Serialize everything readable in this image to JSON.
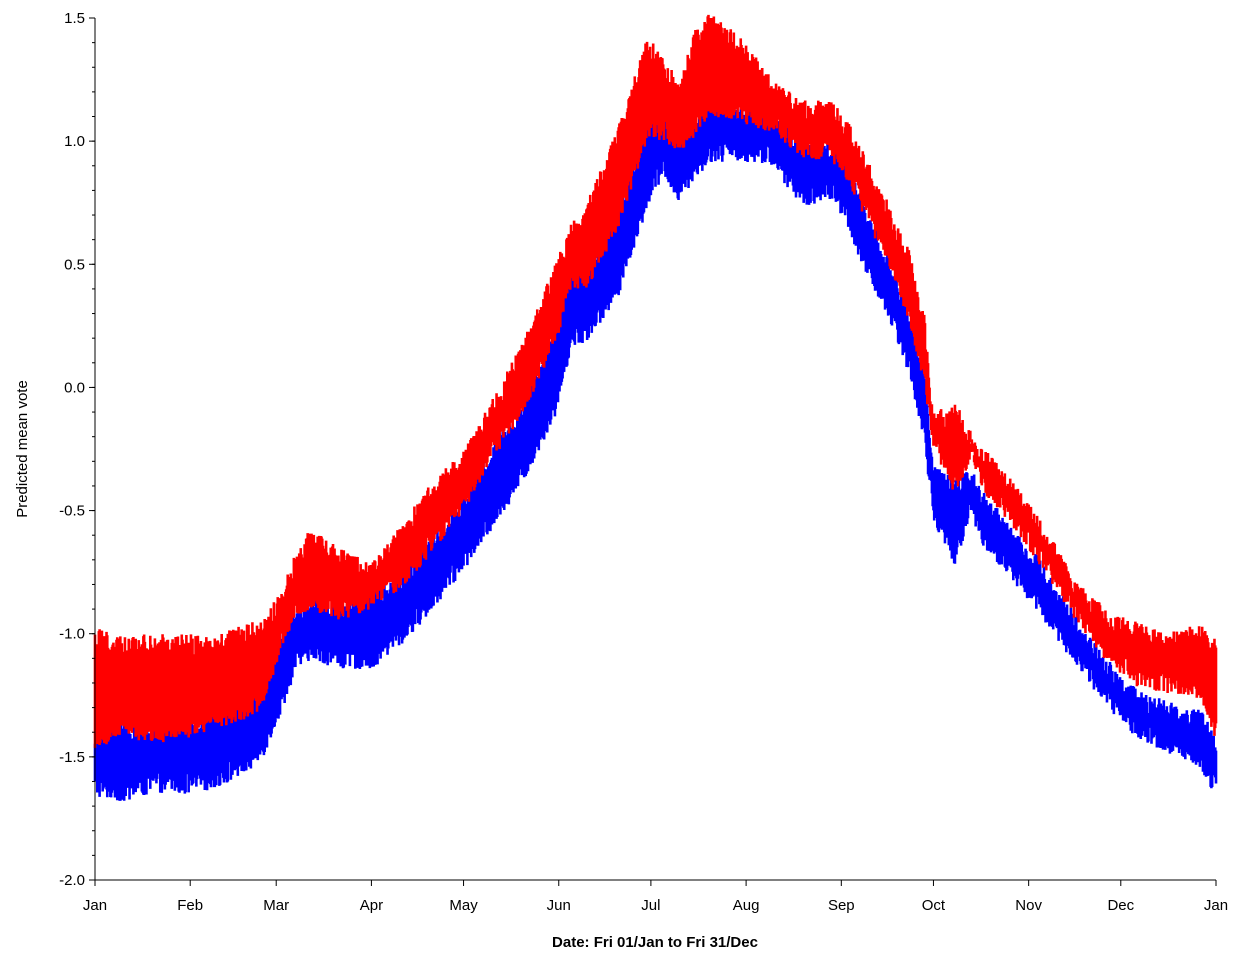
{
  "chart_data": {
    "type": "line",
    "title": "",
    "xlabel": "Date: Fri 01/Jan to Fri 31/Dec",
    "ylabel": "Predicted mean vote",
    "ylim": [
      -2.0,
      1.5
    ],
    "yticks": [
      "1.5",
      "1.0",
      "0.5",
      "0.0",
      "-0.5",
      "-1.0",
      "-1.5",
      "-2.0"
    ],
    "yticks_values": [
      1.5,
      1.0,
      0.5,
      0.0,
      -0.5,
      -1.0,
      -1.5,
      -2.0
    ],
    "xticks": [
      "Jan",
      "Feb",
      "Mar",
      "Apr",
      "May",
      "Jun",
      "Jul",
      "Aug",
      "Sep",
      "Oct",
      "Nov",
      "Dec",
      "Jan"
    ],
    "xticks_days": [
      0,
      31,
      59,
      90,
      120,
      151,
      181,
      212,
      243,
      273,
      304,
      334,
      365
    ],
    "x_unit": "day of year",
    "grid": false,
    "series": [
      {
        "color": "#0000ff",
        "band_x": [
          0,
          10,
          20,
          30,
          40,
          50,
          55,
          60,
          65,
          70,
          80,
          90,
          100,
          110,
          120,
          130,
          140,
          150,
          155,
          160,
          170,
          180,
          185,
          190,
          195,
          200,
          210,
          220,
          230,
          240,
          245,
          250,
          260,
          265,
          270,
          273,
          280,
          285,
          290,
          300,
          310,
          320,
          330,
          340,
          350,
          360,
          365
        ],
        "low": [
          -1.62,
          -1.64,
          -1.6,
          -1.61,
          -1.58,
          -1.52,
          -1.45,
          -1.3,
          -1.12,
          -1.06,
          -1.1,
          -1.1,
          -1.0,
          -0.86,
          -0.7,
          -0.52,
          -0.33,
          -0.07,
          0.2,
          0.23,
          0.4,
          0.78,
          0.9,
          0.8,
          0.88,
          0.96,
          0.96,
          0.95,
          0.78,
          0.8,
          0.7,
          0.52,
          0.28,
          0.1,
          -0.18,
          -0.5,
          -0.68,
          -0.48,
          -0.62,
          -0.76,
          -0.92,
          -1.1,
          -1.26,
          -1.4,
          -1.45,
          -1.5,
          -1.62
        ],
        "high": [
          -1.42,
          -1.38,
          -1.4,
          -1.38,
          -1.34,
          -1.3,
          -1.22,
          -1.06,
          -0.92,
          -0.88,
          -0.92,
          -0.86,
          -0.8,
          -0.64,
          -0.48,
          -0.26,
          -0.08,
          0.2,
          0.45,
          0.44,
          0.68,
          1.05,
          1.2,
          1.02,
          1.05,
          1.15,
          1.12,
          1.08,
          0.96,
          0.96,
          0.88,
          0.72,
          0.44,
          0.28,
          0.02,
          -0.35,
          -0.42,
          -0.36,
          -0.48,
          -0.62,
          -0.78,
          -0.98,
          -1.15,
          -1.28,
          -1.32,
          -1.35,
          -1.45
        ]
      },
      {
        "color": "#ff0000",
        "band_x": [
          0,
          10,
          20,
          30,
          40,
          50,
          55,
          60,
          65,
          70,
          80,
          90,
          100,
          110,
          120,
          130,
          140,
          150,
          155,
          160,
          170,
          180,
          185,
          190,
          195,
          200,
          210,
          220,
          230,
          240,
          245,
          250,
          260,
          265,
          270,
          273,
          280,
          285,
          290,
          300,
          310,
          320,
          330,
          340,
          350,
          360,
          365
        ],
        "low": [
          -1.42,
          -1.38,
          -1.4,
          -1.38,
          -1.34,
          -1.3,
          -1.25,
          -1.04,
          -0.9,
          -0.86,
          -0.9,
          -0.86,
          -0.78,
          -0.62,
          -0.46,
          -0.24,
          -0.05,
          0.22,
          0.45,
          0.44,
          0.68,
          1.05,
          1.05,
          1.0,
          1.05,
          1.15,
          1.12,
          1.08,
          0.98,
          0.96,
          0.88,
          0.75,
          0.5,
          0.3,
          0.05,
          -0.2,
          -0.4,
          -0.25,
          -0.4,
          -0.55,
          -0.72,
          -0.92,
          -1.08,
          -1.18,
          -1.2,
          -1.22,
          -1.4
        ],
        "high": [
          -1.02,
          -1.06,
          -1.04,
          -1.04,
          -1.05,
          -1.0,
          -0.98,
          -0.88,
          -0.72,
          -0.62,
          -0.7,
          -0.76,
          -0.6,
          -0.42,
          -0.3,
          -0.08,
          0.16,
          0.46,
          0.62,
          0.7,
          1.0,
          1.38,
          1.3,
          1.2,
          1.4,
          1.48,
          1.38,
          1.22,
          1.12,
          1.12,
          1.04,
          0.92,
          0.66,
          0.52,
          0.25,
          -0.15,
          -0.1,
          -0.22,
          -0.3,
          -0.44,
          -0.62,
          -0.84,
          -0.95,
          -1.0,
          -1.04,
          -1.0,
          -1.06
        ]
      }
    ]
  }
}
